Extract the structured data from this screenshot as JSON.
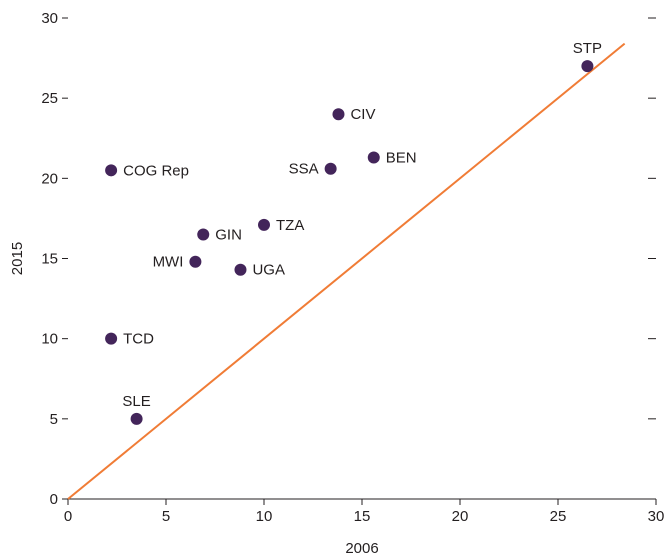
{
  "chart_data": {
    "type": "scatter",
    "title": "",
    "xlabel": "2006",
    "ylabel": "2015",
    "xlim": [
      0,
      30
    ],
    "ylim": [
      0,
      30
    ],
    "xticks": [
      "0",
      "5",
      "10",
      "15",
      "20",
      "25",
      "30"
    ],
    "yticks": [
      "0",
      "5",
      "10",
      "15",
      "20",
      "25",
      "30"
    ],
    "grid": false,
    "legend": "none",
    "colors": {
      "points": "#43255a",
      "reference_line": "#f07c36",
      "axis": "#231f20"
    },
    "points": [
      {
        "label": "STP",
        "x": 26.5,
        "y": 27.0,
        "label_pos": "above"
      },
      {
        "label": "CIV",
        "x": 13.8,
        "y": 24.0,
        "label_pos": "right"
      },
      {
        "label": "BEN",
        "x": 15.6,
        "y": 21.3,
        "label_pos": "right"
      },
      {
        "label": "SSA",
        "x": 13.4,
        "y": 20.6,
        "label_pos": "left"
      },
      {
        "label": "COG Rep",
        "x": 2.2,
        "y": 20.5,
        "label_pos": "right"
      },
      {
        "label": "TZA",
        "x": 10.0,
        "y": 17.1,
        "label_pos": "right"
      },
      {
        "label": "GIN",
        "x": 6.9,
        "y": 16.5,
        "label_pos": "right"
      },
      {
        "label": "MWI",
        "x": 6.5,
        "y": 14.8,
        "label_pos": "left"
      },
      {
        "label": "UGA",
        "x": 8.8,
        "y": 14.3,
        "label_pos": "right"
      },
      {
        "label": "TCD",
        "x": 2.2,
        "y": 10.0,
        "label_pos": "right"
      },
      {
        "label": "SLE",
        "x": 3.5,
        "y": 5.0,
        "label_pos": "above"
      }
    ],
    "reference_line": {
      "type": "45-degree",
      "from": [
        0,
        0
      ],
      "to": [
        28.4,
        28.4
      ]
    }
  }
}
